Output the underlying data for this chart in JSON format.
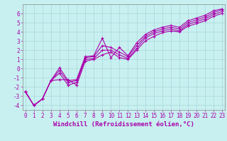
{
  "title": "",
  "xlabel": "Windchill (Refroidissement éolien,°C)",
  "ylabel": "",
  "bg_color": "#c8f0f0",
  "grid_color": "#a0d0d8",
  "line_color": "#aa00aa",
  "xlim": [
    -0.3,
    23.3
  ],
  "ylim": [
    -4.5,
    7.0
  ],
  "yticks": [
    -4,
    -3,
    -2,
    -1,
    0,
    1,
    2,
    3,
    4,
    5,
    6
  ],
  "xticks": [
    0,
    1,
    2,
    3,
    4,
    5,
    6,
    7,
    8,
    9,
    10,
    11,
    12,
    13,
    14,
    15,
    16,
    17,
    18,
    19,
    20,
    21,
    22,
    23
  ],
  "lines": [
    {
      "x": [
        0,
        1,
        2,
        3,
        4,
        5,
        6,
        7,
        8,
        9,
        10,
        11,
        12,
        13,
        14,
        15,
        16,
        17,
        18,
        19,
        20,
        21,
        22,
        23
      ],
      "y": [
        -2.5,
        -4.0,
        -3.3,
        -1.3,
        0.1,
        -1.3,
        -1.2,
        1.3,
        1.4,
        3.3,
        1.2,
        2.3,
        1.4,
        2.8,
        3.7,
        4.2,
        4.5,
        4.7,
        4.5,
        5.2,
        5.5,
        5.8,
        6.3,
        6.5
      ]
    },
    {
      "x": [
        0,
        1,
        2,
        3,
        4,
        5,
        6,
        7,
        8,
        9,
        10,
        11,
        12,
        13,
        14,
        15,
        16,
        17,
        18,
        19,
        20,
        21,
        22,
        23
      ],
      "y": [
        -2.5,
        -4.0,
        -3.3,
        -1.3,
        -0.2,
        -1.5,
        -1.3,
        1.2,
        1.3,
        2.5,
        2.3,
        1.8,
        1.3,
        2.5,
        3.5,
        4.0,
        4.3,
        4.5,
        4.3,
        5.0,
        5.3,
        5.6,
        6.1,
        6.4
      ]
    },
    {
      "x": [
        0,
        1,
        2,
        3,
        4,
        5,
        6,
        7,
        8,
        9,
        10,
        11,
        12,
        13,
        14,
        15,
        16,
        17,
        18,
        19,
        20,
        21,
        22,
        23
      ],
      "y": [
        -2.5,
        -4.0,
        -3.3,
        -1.3,
        -0.5,
        -1.8,
        -1.5,
        1.0,
        1.1,
        2.0,
        2.0,
        1.5,
        1.1,
        2.2,
        3.3,
        3.8,
        4.1,
        4.3,
        4.1,
        4.8,
        5.1,
        5.4,
        5.9,
        6.2
      ]
    },
    {
      "x": [
        0,
        1,
        2,
        3,
        4,
        5,
        6,
        7,
        8,
        9,
        10,
        11,
        12,
        13,
        14,
        15,
        16,
        17,
        18,
        19,
        20,
        21,
        22,
        23
      ],
      "y": [
        -2.5,
        -4.0,
        -3.3,
        -1.3,
        -1.2,
        -1.2,
        -1.8,
        0.8,
        1.0,
        1.5,
        1.8,
        1.2,
        1.0,
        2.0,
        3.0,
        3.5,
        3.9,
        4.1,
        4.0,
        4.6,
        4.9,
        5.2,
        5.7,
        6.0
      ]
    }
  ],
  "marker": "+",
  "marker_size": 3,
  "line_width": 0.8,
  "tick_fontsize": 5.5,
  "xlabel_fontsize": 6.5
}
